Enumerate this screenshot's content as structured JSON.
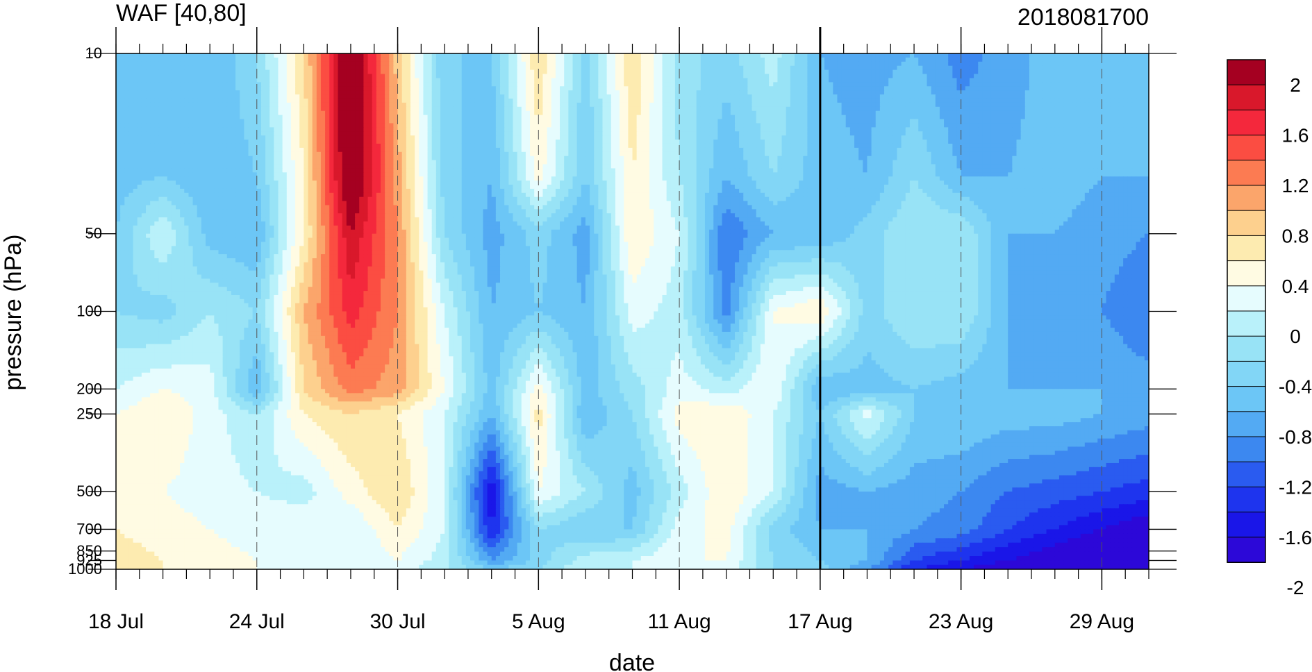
{
  "chart_data": {
    "type": "heatmap",
    "title": "WAF [40,80]",
    "right_title": "2018081700",
    "xlabel": "date",
    "ylabel": "pressure (hPa)",
    "x_ticks": [
      "18 Jul",
      "24 Jul",
      "30 Jul",
      "5 Aug",
      "11 Aug",
      "17 Aug",
      "23 Aug",
      "29 Aug"
    ],
    "x_range": [
      "2018-07-18",
      "2018-08-31"
    ],
    "y_scale": "log",
    "y_reversed": true,
    "y_ticks": [
      "10",
      "50",
      "100",
      "200",
      "250",
      "500",
      "700",
      "850",
      "925",
      "1000"
    ],
    "ylim": [
      1000,
      10
    ],
    "vertical_marker_date": "17 Aug",
    "dashed_gridlines_at": [
      "24 Jul",
      "30 Jul",
      "5 Aug",
      "11 Aug",
      "23 Aug",
      "29 Aug"
    ],
    "colorbar": {
      "labels": [
        "2",
        "1.6",
        "1.2",
        "0.8",
        "0.4",
        "0",
        "-0.4",
        "-0.8",
        "-1.2",
        "-1.6",
        "-2"
      ],
      "colors": [
        "#a50021",
        "#d9182b",
        "#f4283c",
        "#fb4d42",
        "#fc7b52",
        "#fba56b",
        "#fdd08e",
        "#fdebb0",
        "#fffbe3",
        "#e6fcfe",
        "#b9f1fa",
        "#98e3f6",
        "#82d6f6",
        "#6cc6f6",
        "#53aaf3",
        "#3c88f0",
        "#2a5bf0",
        "#1e34ee",
        "#1a16e8",
        "#2c08d8"
      ]
    },
    "field_grid": {
      "dates": [
        "18 Jul",
        "20 Jul",
        "22 Jul",
        "24 Jul",
        "26 Jul",
        "28 Jul",
        "30 Jul",
        "1 Aug",
        "3 Aug",
        "5 Aug",
        "7 Aug",
        "9 Aug",
        "11 Aug",
        "13 Aug",
        "15 Aug",
        "17 Aug",
        "19 Aug",
        "21 Aug",
        "23 Aug",
        "25 Aug",
        "27 Aug",
        "29 Aug",
        "31 Aug"
      ],
      "levels_hPa": [
        10,
        30,
        50,
        100,
        200,
        250,
        500,
        700,
        925,
        1000
      ],
      "values": [
        [
          -0.6,
          -0.6,
          -0.6,
          -0.2,
          0.8,
          2.4,
          0.9,
          -0.4,
          -0.4,
          0.8,
          -0.3,
          0.8,
          -0.1,
          -0.3,
          0.1,
          -0.6,
          -0.7,
          -0.6,
          -0.9,
          -0.7,
          -0.5,
          -0.5,
          -0.4
        ],
        [
          -0.5,
          -0.4,
          -0.6,
          -0.4,
          0.6,
          2.4,
          1.1,
          -0.3,
          -0.6,
          0.5,
          -0.4,
          0.6,
          0.0,
          -0.6,
          -0.2,
          -0.5,
          -0.6,
          -0.2,
          -0.6,
          -0.6,
          -0.5,
          -0.6,
          -0.6
        ],
        [
          -0.4,
          0.2,
          -0.5,
          -0.6,
          0.6,
          2.0,
          1.2,
          -0.2,
          -0.7,
          -0.3,
          -0.7,
          0.6,
          0.2,
          -1.0,
          -0.6,
          -0.6,
          -0.3,
          0.0,
          0.0,
          -0.6,
          -0.6,
          -0.7,
          -0.8
        ],
        [
          -0.2,
          -0.3,
          0.0,
          -0.2,
          1.0,
          1.7,
          1.2,
          0.2,
          -0.6,
          -0.4,
          -0.6,
          0.3,
          0.1,
          -0.9,
          0.4,
          0.6,
          -0.3,
          0.0,
          0.0,
          -0.6,
          -0.7,
          -0.8,
          -1.0
        ],
        [
          0.2,
          0.4,
          0.3,
          -0.6,
          0.8,
          1.3,
          1.1,
          0.4,
          -0.5,
          0.5,
          -0.5,
          -0.1,
          0.3,
          0.1,
          0.4,
          -0.6,
          -0.5,
          -0.4,
          -0.5,
          -0.6,
          -0.6,
          -0.6,
          -0.7
        ],
        [
          0.4,
          0.6,
          0.3,
          0.0,
          0.6,
          0.8,
          0.6,
          0.2,
          -0.6,
          0.7,
          -0.6,
          -0.2,
          0.5,
          0.6,
          0.2,
          -0.4,
          0.3,
          -0.4,
          -0.4,
          -0.5,
          -0.5,
          -0.6,
          -0.7
        ],
        [
          0.5,
          0.4,
          0.3,
          0.2,
          0.1,
          0.5,
          0.8,
          0.2,
          -1.6,
          0.4,
          0.0,
          -0.5,
          0.1,
          0.6,
          0.2,
          -0.7,
          -0.6,
          -0.7,
          -0.8,
          -1.0,
          -1.1,
          -1.2,
          -1.3
        ],
        [
          0.6,
          0.5,
          0.4,
          0.3,
          0.4,
          0.2,
          0.6,
          0.2,
          -1.4,
          -0.2,
          -0.4,
          -0.4,
          0.3,
          0.5,
          -0.3,
          -0.6,
          -0.6,
          -0.8,
          -0.9,
          -1.2,
          -1.4,
          -1.6,
          -1.8
        ],
        [
          0.7,
          0.6,
          0.5,
          0.4,
          0.3,
          0.2,
          0.4,
          0.1,
          -0.8,
          -0.3,
          0.1,
          0.2,
          0.4,
          0.4,
          -0.2,
          -0.4,
          -0.6,
          -1.2,
          -1.4,
          -1.6,
          -1.8,
          -2.0,
          -2.1
        ],
        [
          0.6,
          0.6,
          0.5,
          0.4,
          0.3,
          0.2,
          0.3,
          0.0,
          -0.4,
          -0.2,
          0.2,
          0.2,
          0.3,
          0.3,
          -0.2,
          -0.3,
          -0.8,
          -1.4,
          -1.6,
          -1.8,
          -2.0,
          -2.2,
          -2.2
        ]
      ]
    }
  }
}
